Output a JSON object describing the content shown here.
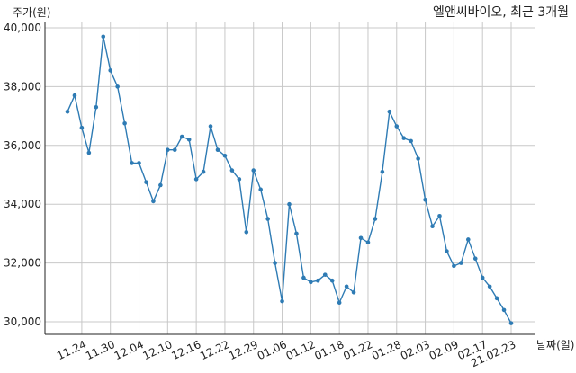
{
  "chart_data": {
    "type": "line",
    "title": "엘앤씨바이오, 최근 3개월",
    "ylabel": "주가(원)",
    "xlabel": "날짜(일)",
    "ylim": [
      29800,
      40300
    ],
    "yticks": [
      30000,
      32000,
      34000,
      36000,
      38000,
      40000
    ],
    "ytick_labels": [
      "30,000",
      "32,000",
      "34,000",
      "36,000",
      "38,000",
      "40,000"
    ],
    "xtick_labels": [
      "11.24",
      "11.30",
      "12.04",
      "12.10",
      "12.16",
      "12.22",
      "12.29",
      "01.06",
      "01.12",
      "01.18",
      "01.22",
      "01.28",
      "02.03",
      "02.09",
      "02.17",
      "21.02.23"
    ],
    "xtick_indices": [
      2,
      6,
      10,
      14,
      18,
      22,
      26,
      30,
      34,
      38,
      42,
      46,
      50,
      54,
      58,
      62
    ],
    "grid": true,
    "series": [
      {
        "values": [
          37150,
          37700,
          36600,
          35750,
          37300,
          39700,
          38550,
          38000,
          36750,
          35400,
          35400,
          34750,
          34100,
          34650,
          35850,
          35850,
          36300,
          36200,
          34850,
          35100,
          36650,
          35850,
          35650,
          35150,
          34850,
          33050,
          35150,
          34500,
          33500,
          32000,
          30700,
          34000,
          33000,
          31500,
          31350,
          31400,
          31600,
          31400,
          30650,
          31200,
          31000,
          32850,
          32700,
          33500,
          35100,
          37150,
          36650,
          36250,
          36150,
          35550,
          34150,
          33250,
          33600,
          32400,
          31900,
          32000,
          32800,
          32150,
          31500,
          31200,
          30800,
          30400,
          29950
        ]
      }
    ],
    "colors": {
      "line": "#2e7bb4",
      "marker": "#2e7bb4",
      "grid": "#c8c8c8",
      "text": "#222222"
    }
  }
}
